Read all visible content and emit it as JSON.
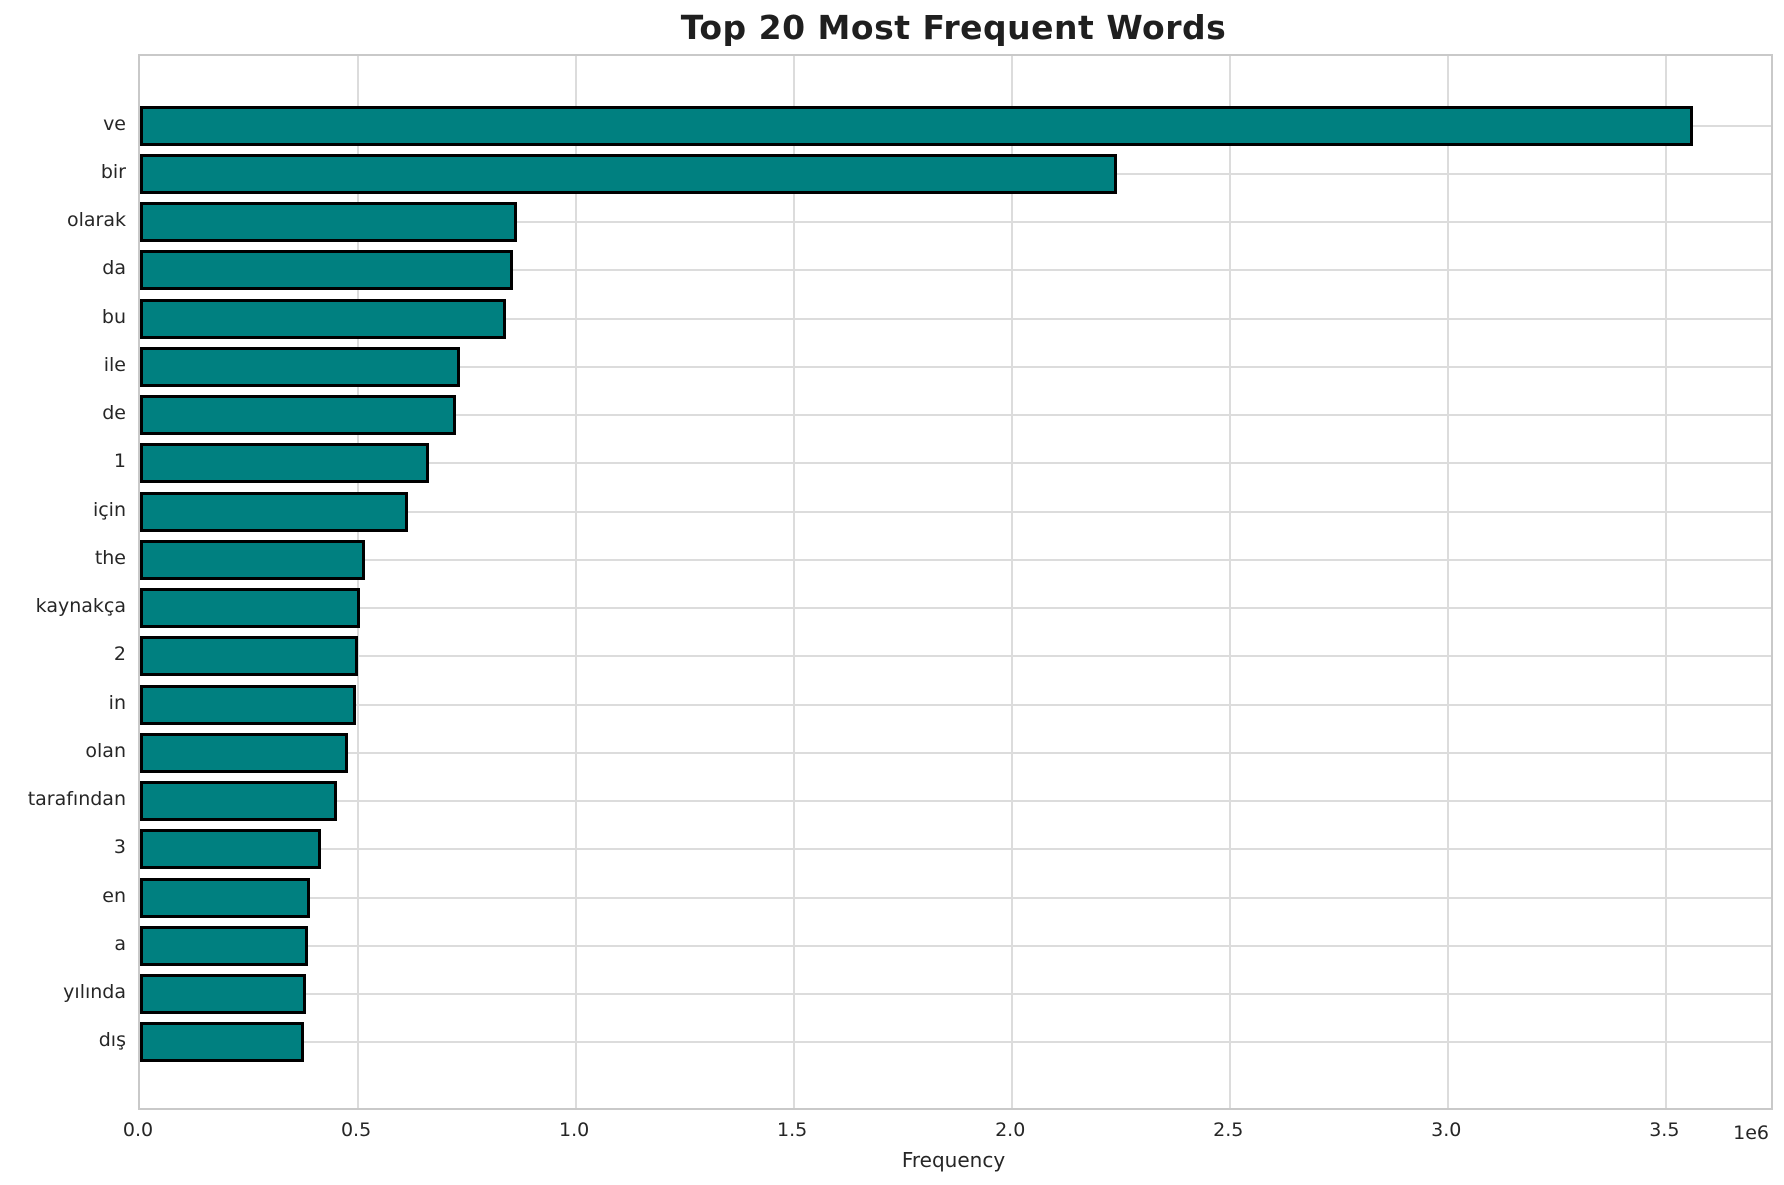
{
  "chart_data": {
    "type": "bar",
    "orientation": "horizontal",
    "title": "Top 20 Most Frequent Words",
    "xlabel": "Frequency",
    "ylabel": "",
    "categories": [
      "ve",
      "bir",
      "olarak",
      "da",
      "bu",
      "ile",
      "de",
      "1",
      "için",
      "the",
      "kaynakça",
      "2",
      "in",
      "olan",
      "tarafından",
      "3",
      "en",
      "a",
      "yılında",
      "dış"
    ],
    "values": [
      3560000,
      2240000,
      865000,
      855000,
      840000,
      733000,
      725000,
      663000,
      615000,
      515000,
      505000,
      500000,
      495000,
      476000,
      451000,
      415000,
      390000,
      386000,
      381000,
      376000
    ],
    "xlim": [
      0,
      3740000
    ],
    "xticks": [
      0,
      500000,
      1000000,
      1500000,
      2000000,
      2500000,
      3000000,
      3500000
    ],
    "xtick_labels": [
      "0.0",
      "0.5",
      "1.0",
      "1.5",
      "2.0",
      "2.5",
      "3.0",
      "3.5"
    ],
    "offset_text": "1e6",
    "grid": true,
    "legend": false,
    "bar_color": "#008080",
    "bar_edge_color": "#000000",
    "grid_color": "#dcdcdc",
    "spine_color": "#c9c9c9",
    "background_color": "#ffffff"
  }
}
